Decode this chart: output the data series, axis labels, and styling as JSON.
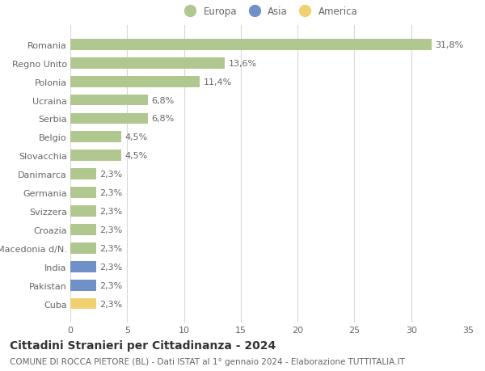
{
  "categories": [
    "Cuba",
    "Pakistan",
    "India",
    "Macedonia d/N.",
    "Croazia",
    "Svizzera",
    "Germania",
    "Danimarca",
    "Slovacchia",
    "Belgio",
    "Serbia",
    "Ucraina",
    "Polonia",
    "Regno Unito",
    "Romania"
  ],
  "values": [
    2.3,
    2.3,
    2.3,
    2.3,
    2.3,
    2.3,
    2.3,
    2.3,
    4.5,
    4.5,
    6.8,
    6.8,
    11.4,
    13.6,
    31.8
  ],
  "colors": [
    "#f0d070",
    "#7090c8",
    "#7090c8",
    "#b0c890",
    "#b0c890",
    "#b0c890",
    "#b0c890",
    "#b0c890",
    "#b0c890",
    "#b0c890",
    "#b0c890",
    "#b0c890",
    "#b0c890",
    "#b0c890",
    "#b0c890"
  ],
  "labels": [
    "2,3%",
    "2,3%",
    "2,3%",
    "2,3%",
    "2,3%",
    "2,3%",
    "2,3%",
    "2,3%",
    "4,5%",
    "4,5%",
    "6,8%",
    "6,8%",
    "11,4%",
    "13,6%",
    "31,8%"
  ],
  "legend": [
    {
      "label": "Europa",
      "color": "#b0c890"
    },
    {
      "label": "Asia",
      "color": "#7090c8"
    },
    {
      "label": "America",
      "color": "#f0d070"
    }
  ],
  "title": "Cittadini Stranieri per Cittadinanza - 2024",
  "subtitle": "COMUNE DI ROCCA PIETORE (BL) - Dati ISTAT al 1° gennaio 2024 - Elaborazione TUTTITALIA.IT",
  "xlim": [
    0,
    35
  ],
  "xticks": [
    0,
    5,
    10,
    15,
    20,
    25,
    30,
    35
  ],
  "bar_height": 0.6,
  "background_color": "#ffffff",
  "grid_color": "#d8d8d8",
  "text_color": "#666666",
  "label_fontsize": 8,
  "tick_fontsize": 8,
  "title_fontsize": 10,
  "subtitle_fontsize": 7.5
}
